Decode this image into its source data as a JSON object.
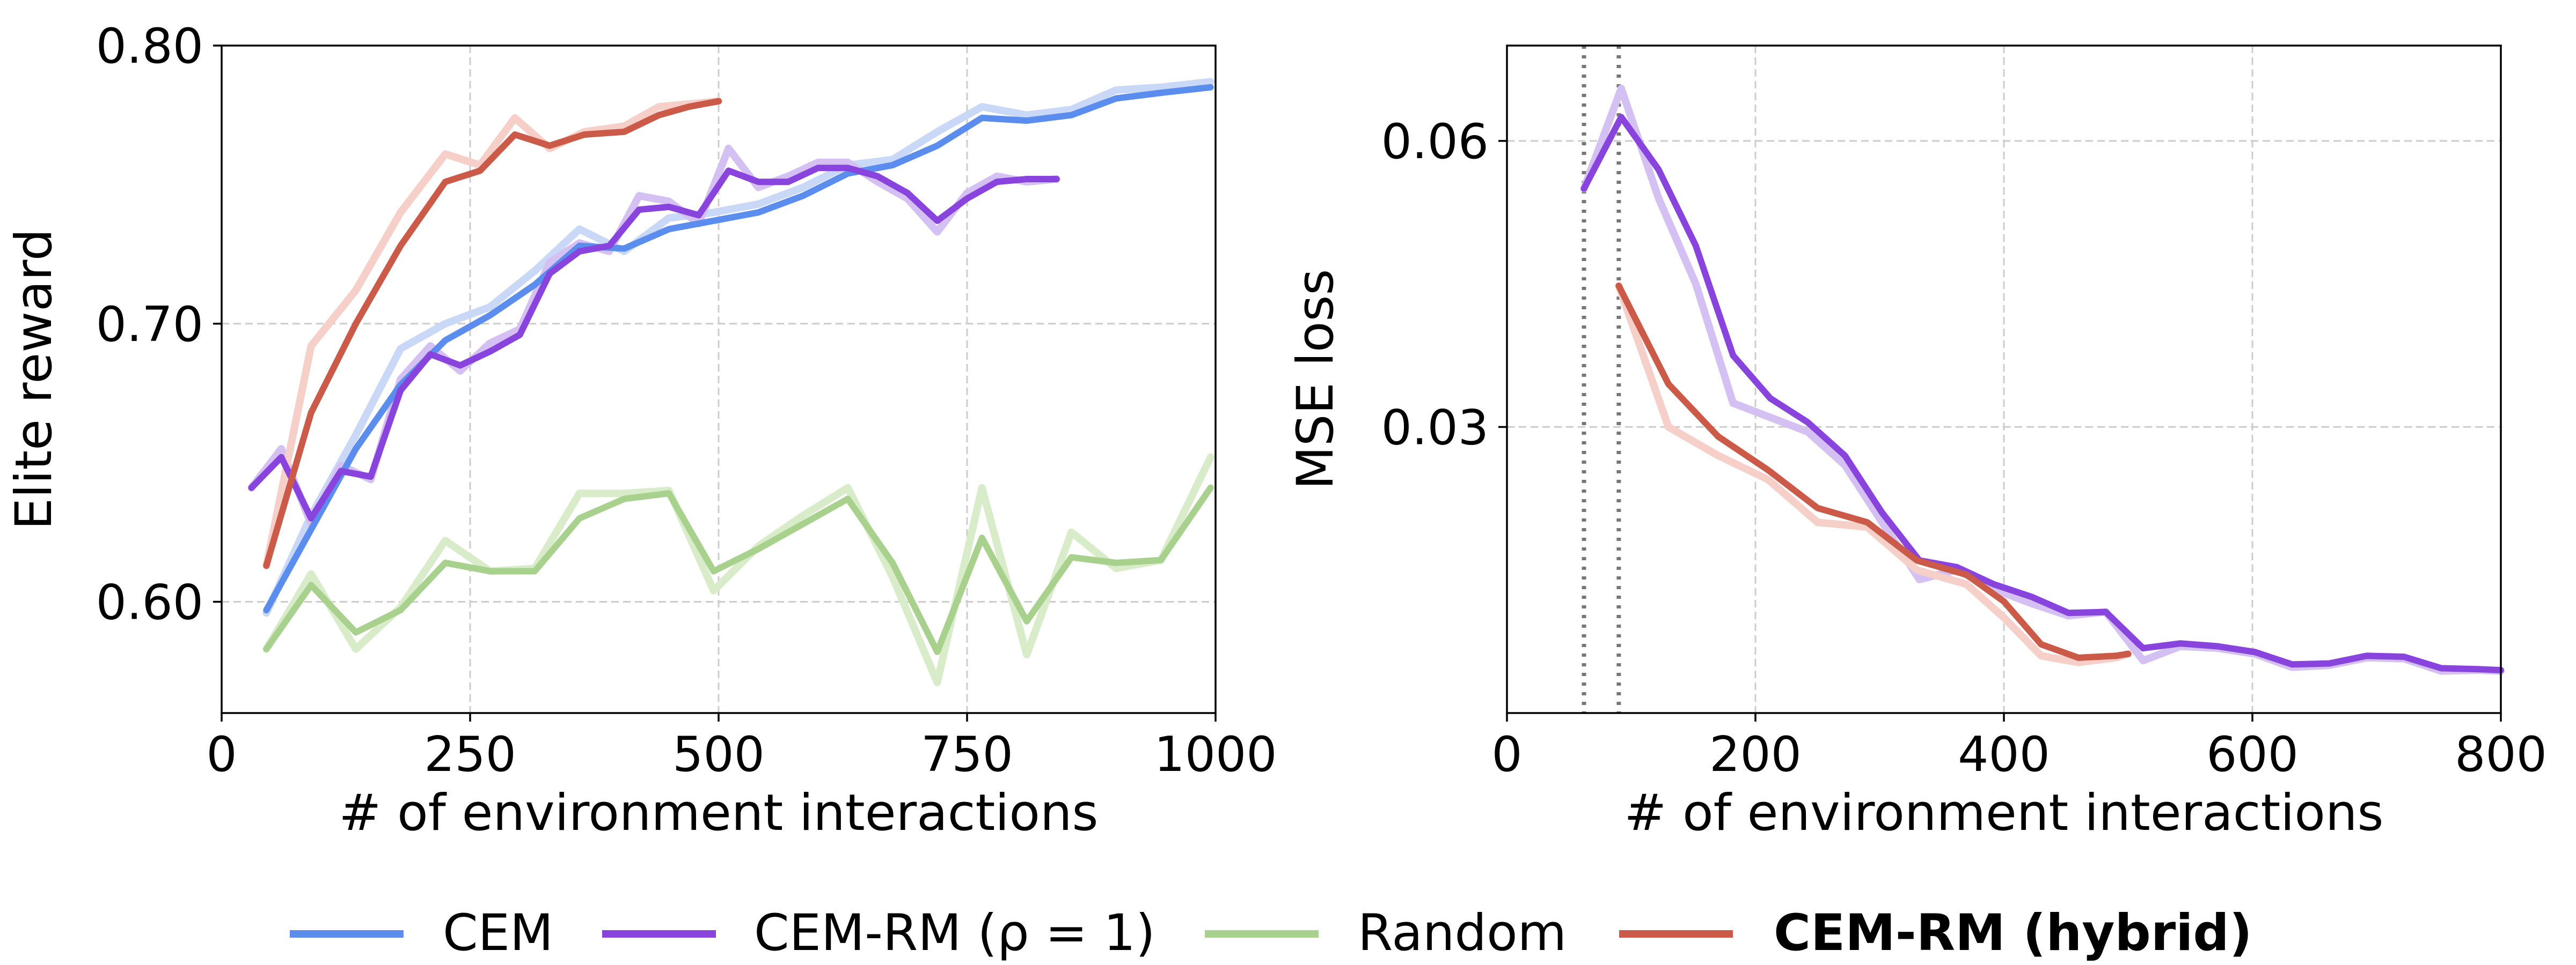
{
  "chart_data": [
    {
      "type": "line",
      "xlabel": "# of environment interactions",
      "ylabel": "Elite reward",
      "xlim": [
        0,
        1000
      ],
      "ylim": [
        0.56,
        0.8
      ],
      "xticks": [
        0,
        250,
        500,
        750,
        1000
      ],
      "xtick_labels": [
        "0",
        "250",
        "500",
        "750",
        "1000"
      ],
      "yticks": [
        0.6,
        0.7,
        0.8
      ],
      "ytick_labels": [
        "0.60",
        "0.70",
        "0.80"
      ],
      "grid": true,
      "series": [
        {
          "name": "CEM",
          "color": "#5b8def",
          "raw_color": "#c9d8f7",
          "x": [
            45,
            90,
            135,
            180,
            225,
            270,
            315,
            360,
            405,
            450,
            495,
            540,
            585,
            630,
            675,
            720,
            765,
            810,
            855,
            900,
            945,
            995
          ],
          "values": [
            0.597,
            0.626,
            0.655,
            0.678,
            0.694,
            0.703,
            0.714,
            0.728,
            0.727,
            0.734,
            0.737,
            0.74,
            0.746,
            0.754,
            0.757,
            0.764,
            0.774,
            0.773,
            0.775,
            0.781,
            0.783,
            0.785
          ],
          "raw": [
            0.596,
            0.631,
            0.66,
            0.691,
            0.7,
            0.706,
            0.719,
            0.734,
            0.726,
            0.738,
            0.74,
            0.743,
            0.749,
            0.757,
            0.759,
            0.769,
            0.778,
            0.775,
            0.777,
            0.784,
            0.785,
            0.787
          ]
        },
        {
          "name": "CEM-RM (ρ = 1)",
          "color": "#8844dd",
          "raw_color": "#d4c0f2",
          "x": [
            30,
            60,
            90,
            120,
            150,
            180,
            210,
            240,
            270,
            300,
            330,
            360,
            390,
            420,
            450,
            480,
            510,
            540,
            570,
            600,
            630,
            660,
            690,
            720,
            750,
            780,
            810,
            840
          ],
          "values": [
            0.641,
            0.652,
            0.63,
            0.647,
            0.645,
            0.676,
            0.689,
            0.685,
            0.69,
            0.696,
            0.718,
            0.726,
            0.728,
            0.741,
            0.742,
            0.739,
            0.755,
            0.751,
            0.751,
            0.756,
            0.756,
            0.753,
            0.747,
            0.737,
            0.745,
            0.751,
            0.752,
            0.752
          ],
          "raw": [
            0.641,
            0.655,
            0.628,
            0.649,
            0.644,
            0.68,
            0.692,
            0.683,
            0.693,
            0.698,
            0.722,
            0.729,
            0.726,
            0.746,
            0.744,
            0.736,
            0.763,
            0.749,
            0.753,
            0.758,
            0.758,
            0.751,
            0.745,
            0.733,
            0.747,
            0.753,
            0.751,
            0.752
          ]
        },
        {
          "name": "Random",
          "color": "#a9d18e",
          "raw_color": "#d9ecc9",
          "x": [
            45,
            90,
            135,
            180,
            225,
            270,
            315,
            360,
            405,
            450,
            495,
            540,
            585,
            630,
            675,
            720,
            765,
            810,
            855,
            900,
            945,
            995
          ],
          "values": [
            0.583,
            0.606,
            0.589,
            0.597,
            0.614,
            0.611,
            0.611,
            0.63,
            0.637,
            0.639,
            0.611,
            0.619,
            0.628,
            0.637,
            0.614,
            0.582,
            0.623,
            0.593,
            0.616,
            0.614,
            0.615,
            0.641
          ],
          "raw": [
            0.583,
            0.61,
            0.583,
            0.598,
            0.622,
            0.611,
            0.612,
            0.639,
            0.639,
            0.64,
            0.604,
            0.62,
            0.631,
            0.641,
            0.609,
            0.571,
            0.641,
            0.581,
            0.625,
            0.612,
            0.615,
            0.652
          ]
        },
        {
          "name": "CEM-RM (hybrid)",
          "color": "#cc5a48",
          "raw_color": "#f6cfc9",
          "bold_label": true,
          "x": [
            45,
            90,
            135,
            180,
            225,
            260,
            295,
            330,
            365,
            405,
            440,
            470,
            500
          ],
          "values": [
            0.613,
            0.668,
            0.7,
            0.728,
            0.751,
            0.755,
            0.768,
            0.764,
            0.768,
            0.769,
            0.775,
            0.778,
            0.78
          ],
          "raw": [
            0.613,
            0.692,
            0.712,
            0.74,
            0.761,
            0.757,
            0.774,
            0.763,
            0.769,
            0.771,
            0.778,
            0.779,
            0.78
          ]
        }
      ]
    },
    {
      "type": "line",
      "xlabel": "# of environment interactions",
      "ylabel": "MSE loss",
      "xlim": [
        0,
        800
      ],
      "ylim": [
        0.0,
        0.07
      ],
      "xticks": [
        0,
        200,
        400,
        600,
        800
      ],
      "xtick_labels": [
        "0",
        "200",
        "400",
        "600",
        "800"
      ],
      "yticks": [
        0.03,
        0.06
      ],
      "ytick_labels": [
        "0.03",
        "0.06"
      ],
      "grid": true,
      "vlines": [
        62,
        90
      ],
      "series": [
        {
          "name": "CEM-RM (ρ = 1)",
          "color": "#8844dd",
          "raw_color": "#d4c0f2",
          "x": [
            62,
            92,
            122,
            152,
            182,
            212,
            242,
            272,
            302,
            332,
            362,
            392,
            422,
            452,
            482,
            512,
            542,
            572,
            602,
            632,
            662,
            692,
            722,
            752,
            782,
            800
          ],
          "values": [
            0.055,
            0.0625,
            0.057,
            0.049,
            0.0375,
            0.033,
            0.0305,
            0.027,
            0.021,
            0.016,
            0.0153,
            0.0135,
            0.0122,
            0.0105,
            0.0106,
            0.0068,
            0.0073,
            0.007,
            0.0064,
            0.0051,
            0.0052,
            0.006,
            0.0059,
            0.0047,
            0.0046,
            0.0045
          ],
          "raw": [
            0.055,
            0.0655,
            0.054,
            0.045,
            0.0325,
            0.031,
            0.0295,
            0.026,
            0.02,
            0.014,
            0.015,
            0.013,
            0.0115,
            0.0102,
            0.0106,
            0.0055,
            0.007,
            0.0068,
            0.0062,
            0.0048,
            0.005,
            0.0058,
            0.0057,
            0.0044,
            0.0045,
            0.0044
          ]
        },
        {
          "name": "CEM-RM (hybrid)",
          "color": "#cc5a48",
          "raw_color": "#f6cfc9",
          "x": [
            90,
            130,
            170,
            210,
            250,
            290,
            330,
            370,
            400,
            430,
            460,
            490,
            500
          ],
          "values": [
            0.0448,
            0.0345,
            0.029,
            0.0255,
            0.0215,
            0.02,
            0.016,
            0.0145,
            0.0117,
            0.0072,
            0.0058,
            0.006,
            0.0062
          ],
          "raw": [
            0.0448,
            0.03,
            0.027,
            0.0245,
            0.02,
            0.0195,
            0.015,
            0.0135,
            0.01,
            0.006,
            0.0053,
            0.0058,
            0.0062
          ]
        }
      ]
    }
  ],
  "legend": {
    "placement": "bottom-center",
    "entries": [
      {
        "label": "CEM",
        "color": "#5b8def",
        "bold": false
      },
      {
        "label": "CEM-RM (ρ = 1)",
        "color": "#8844dd",
        "bold": false
      },
      {
        "label": "Random",
        "color": "#a9d18e",
        "bold": false
      },
      {
        "label": "CEM-RM (hybrid)",
        "color": "#cc5a48",
        "bold": true
      }
    ]
  }
}
